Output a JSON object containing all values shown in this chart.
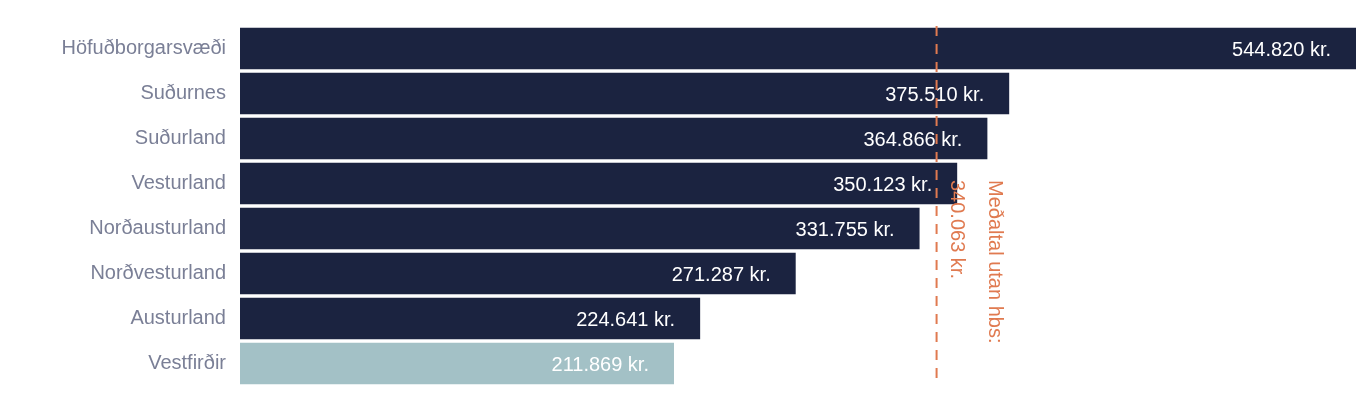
{
  "chart_data": {
    "type": "bar",
    "orientation": "horizontal",
    "categories": [
      "Höfuðborgarsvæði",
      "Suðurnes",
      "Suðurland",
      "Vesturland",
      "Norðausturland",
      "Norðvesturland",
      "Austurland",
      "Vestfirðir"
    ],
    "values": [
      544820,
      375510,
      364866,
      350123,
      331755,
      271287,
      224641,
      211869
    ],
    "colors": [
      "#1b2340",
      "#1b2340",
      "#1b2340",
      "#1b2340",
      "#1b2340",
      "#1b2340",
      "#1b2340",
      "#a3c1c6"
    ],
    "value_labels": [
      "544.820 kr.",
      "375.510 kr.",
      "364.866 kr.",
      "350.123 kr.",
      "331.755 kr.",
      "271.287 kr.",
      "224.641 kr.",
      "211.869 kr."
    ],
    "ref_lines": [
      {
        "axis": "x",
        "value": 340063,
        "label": "Meðaltal utan hbs:\n340.063 kr.",
        "color": "#e07a50",
        "line_style": "dashed"
      }
    ],
    "grid": false,
    "legend": false,
    "tick_labels": "y"
  }
}
